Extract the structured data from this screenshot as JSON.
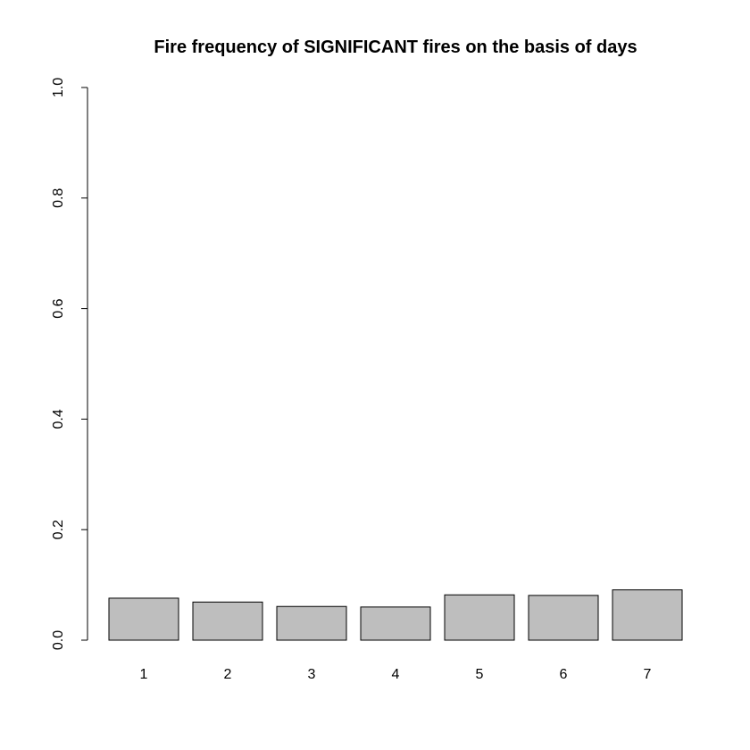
{
  "chart_data": {
    "type": "bar",
    "title": "Fire frequency of SIGNIFICANT fires on the basis of days",
    "xlabel": "",
    "ylabel": "",
    "categories": [
      "1",
      "2",
      "3",
      "4",
      "5",
      "6",
      "7"
    ],
    "values": [
      0.076,
      0.069,
      0.061,
      0.06,
      0.082,
      0.081,
      0.091
    ],
    "ylim": [
      0,
      1
    ],
    "yticks": [
      0.0,
      0.2,
      0.4,
      0.6,
      0.8,
      1.0
    ],
    "ytick_labels": [
      "0.0",
      "0.2",
      "0.4",
      "0.6",
      "0.8",
      "1.0"
    ],
    "grid": false,
    "legend": "none",
    "colors": {
      "bar_fill": "#bebebe",
      "bar_stroke": "#000000",
      "axis": "#000000"
    }
  }
}
